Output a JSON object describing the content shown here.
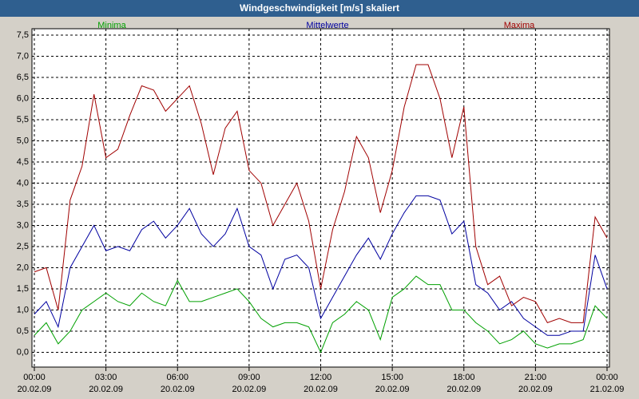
{
  "chart_data": {
    "type": "line",
    "title": "Windgeschwindigkeit [m/s] skaliert",
    "x": [
      0,
      0.5,
      1,
      1.5,
      2,
      2.5,
      3,
      3.5,
      4,
      4.5,
      5,
      5.5,
      6,
      6.5,
      7,
      7.5,
      8,
      8.5,
      9,
      9.5,
      10,
      10.5,
      11,
      11.5,
      12,
      12.5,
      13,
      13.5,
      14,
      14.5,
      15,
      15.5,
      16,
      16.5,
      17,
      17.5,
      18,
      18.5,
      19,
      19.5,
      20,
      20.5,
      21,
      21.5,
      22,
      22.5,
      23,
      23.5,
      24
    ],
    "series": [
      {
        "name": "Minima",
        "color": "#00a000",
        "values": [
          0.4,
          0.7,
          0.2,
          0.5,
          1.0,
          1.2,
          1.4,
          1.2,
          1.1,
          1.4,
          1.2,
          1.1,
          1.7,
          1.2,
          1.2,
          1.3,
          1.4,
          1.5,
          1.2,
          0.8,
          0.6,
          0.7,
          0.7,
          0.6,
          0.0,
          0.7,
          0.9,
          1.2,
          1.0,
          0.3,
          1.3,
          1.5,
          1.8,
          1.6,
          1.6,
          1.0,
          1.0,
          0.7,
          0.5,
          0.2,
          0.3,
          0.5,
          0.2,
          0.1,
          0.2,
          0.2,
          0.3,
          1.1,
          0.8
        ]
      },
      {
        "name": "Mittelwerte",
        "color": "#0000a0",
        "values": [
          0.9,
          1.2,
          0.6,
          2.0,
          2.5,
          3.0,
          2.4,
          2.5,
          2.4,
          2.9,
          3.1,
          2.7,
          3.0,
          3.4,
          2.8,
          2.5,
          2.8,
          3.4,
          2.5,
          2.3,
          1.5,
          2.2,
          2.3,
          2.0,
          0.8,
          1.3,
          1.8,
          2.3,
          2.7,
          2.2,
          2.8,
          3.3,
          3.7,
          3.7,
          3.6,
          2.8,
          3.1,
          1.6,
          1.4,
          1.0,
          1.2,
          0.8,
          0.6,
          0.4,
          0.4,
          0.5,
          0.5,
          2.3,
          1.5
        ]
      },
      {
        "name": "Maxima",
        "color": "#a00000",
        "values": [
          1.9,
          2.0,
          1.0,
          3.6,
          4.4,
          6.1,
          4.6,
          4.8,
          5.6,
          6.3,
          6.2,
          5.7,
          6.0,
          6.3,
          5.4,
          4.2,
          5.3,
          5.7,
          4.3,
          4.0,
          3.0,
          3.5,
          4.0,
          3.1,
          1.5,
          2.9,
          3.8,
          5.1,
          4.6,
          3.3,
          4.3,
          5.8,
          6.8,
          6.8,
          6.0,
          4.6,
          5.8,
          2.5,
          1.6,
          1.8,
          1.1,
          1.3,
          1.2,
          0.7,
          0.8,
          0.7,
          0.7,
          3.2,
          2.7
        ]
      }
    ],
    "xlim": [
      -0.1,
      24.1
    ],
    "xticks": [
      {
        "value": 0,
        "label": "00:00",
        "sublabel": "20.02.09"
      },
      {
        "value": 3,
        "label": "03:00",
        "sublabel": "20.02.09"
      },
      {
        "value": 6,
        "label": "06:00",
        "sublabel": "20.02.09"
      },
      {
        "value": 9,
        "label": "09:00",
        "sublabel": "20.02.09"
      },
      {
        "value": 12,
        "label": "12:00",
        "sublabel": "20.02.09"
      },
      {
        "value": 15,
        "label": "15:00",
        "sublabel": "20.02.09"
      },
      {
        "value": 18,
        "label": "18:00",
        "sublabel": "20.02.09"
      },
      {
        "value": 21,
        "label": "21:00",
        "sublabel": "20.02.09"
      },
      {
        "value": 24,
        "label": "00:00",
        "sublabel": "21.02.09"
      }
    ],
    "ylim": [
      -0.35,
      7.65
    ],
    "yticks": [
      {
        "value": 0,
        "label": "0,0"
      },
      {
        "value": 0.5,
        "label": "0,5"
      },
      {
        "value": 1,
        "label": "1,0"
      },
      {
        "value": 1.5,
        "label": "1,5"
      },
      {
        "value": 2,
        "label": "2,0"
      },
      {
        "value": 2.5,
        "label": "2,5"
      },
      {
        "value": 3,
        "label": "3,0"
      },
      {
        "value": 3.5,
        "label": "3,5"
      },
      {
        "value": 4,
        "label": "4,0"
      },
      {
        "value": 4.5,
        "label": "4,5"
      },
      {
        "value": 5,
        "label": "5,0"
      },
      {
        "value": 5.5,
        "label": "5,5"
      },
      {
        "value": 6,
        "label": "6,0"
      },
      {
        "value": 6.5,
        "label": "6,5"
      },
      {
        "value": 7,
        "label": "7,0"
      },
      {
        "value": 7.5,
        "label": "7,5"
      }
    ],
    "grid": true
  }
}
